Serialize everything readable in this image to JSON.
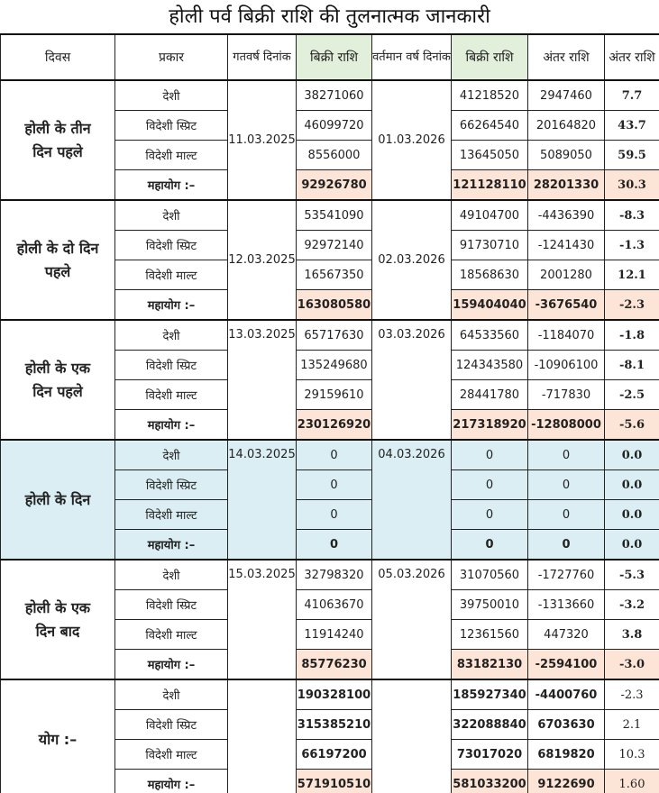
{
  "title": "होली पर्व बिक्री राशि की तुलनात्मक जानकारी",
  "headers": [
    "दिवस",
    "प्रकार",
    "गतवर्ष दिनांक",
    "बिक्री राशि",
    "वर्तमान वर्ष दिनांक",
    "बिक्री राशि",
    "अंतर राशि",
    "अंतर राशि"
  ],
  "types": [
    "देशी",
    "विदेशी स्प्रिट",
    "विदेशी माल्ट",
    "महायोग :–"
  ],
  "groups": [
    {
      "day": "होली के तीन दिन पहले",
      "prev_date": "11.03.2025",
      "cur_date": "01.03.2026",
      "rows": [
        [
          "38271060",
          "41218520",
          "2947460",
          "7.7"
        ],
        [
          "46099720",
          "66264540",
          "20164820",
          "43.7"
        ],
        [
          "8556000",
          "13645050",
          "5089050",
          "59.5"
        ],
        [
          "92926780",
          "121128110",
          "28201330",
          "30.3"
        ]
      ]
    },
    {
      "day": "होली के दो दिन पहले",
      "prev_date": "12.03.2025",
      "cur_date": "02.03.2026",
      "rows": [
        [
          "53541090",
          "49104700",
          "-4436390",
          "-8.3"
        ],
        [
          "92972140",
          "91730710",
          "-1241430",
          "-1.3"
        ],
        [
          "16567350",
          "18568630",
          "2001280",
          "12.1"
        ],
        [
          "163080580",
          "159404040",
          "-3676540",
          "-2.3"
        ]
      ]
    },
    {
      "day": "होली के एक दिन पहले",
      "prev_date": "13.03.2025",
      "cur_date": "03.03.2026",
      "rows": [
        [
          "65717630",
          "64533560",
          "-1184070",
          "-1.8"
        ],
        [
          "135249680",
          "124343580",
          "-10906100",
          "-8.1"
        ],
        [
          "29159610",
          "28441780",
          "-717830",
          "-2.5"
        ],
        [
          "230126920",
          "217318920",
          "-12808000",
          "-5.6"
        ]
      ]
    },
    {
      "day": "होली के दिन",
      "prev_date": "14.03.2025",
      "cur_date": "04.03.2026",
      "rows": [
        [
          "0",
          "0",
          "0",
          "0.0"
        ],
        [
          "0",
          "0",
          "0",
          "0.0"
        ],
        [
          "0",
          "0",
          "0",
          "0.0"
        ],
        [
          "0",
          "0",
          "0",
          "0.0"
        ]
      ]
    },
    {
      "day": "होली के एक दिन बाद",
      "prev_date": "15.03.2025",
      "cur_date": "05.03.2026",
      "rows": [
        [
          "32798320",
          "31070560",
          "-1727760",
          "-5.3"
        ],
        [
          "41063670",
          "39750010",
          "-1313660",
          "-3.2"
        ],
        [
          "11914240",
          "12361560",
          "447320",
          "3.8"
        ],
        [
          "85776230",
          "83182130",
          "-2594100",
          "-3.0"
        ]
      ]
    },
    {
      "day": "योग :–",
      "prev_date": "",
      "cur_date": "",
      "rows": [
        [
          "190328100",
          "185927340",
          "-4400760",
          "-2.3"
        ],
        [
          "315385210",
          "322088840",
          "6703630",
          "2.1"
        ],
        [
          "66197200",
          "73017020",
          "6819820",
          "10.3"
        ],
        [
          "571910510",
          "581033200",
          "9122690",
          "1.60"
        ]
      ]
    }
  ],
  "colors": {
    "header_green": "#e2efda",
    "total_peach": "#fce4d6",
    "holi_day_blue": "#daeef3"
  }
}
